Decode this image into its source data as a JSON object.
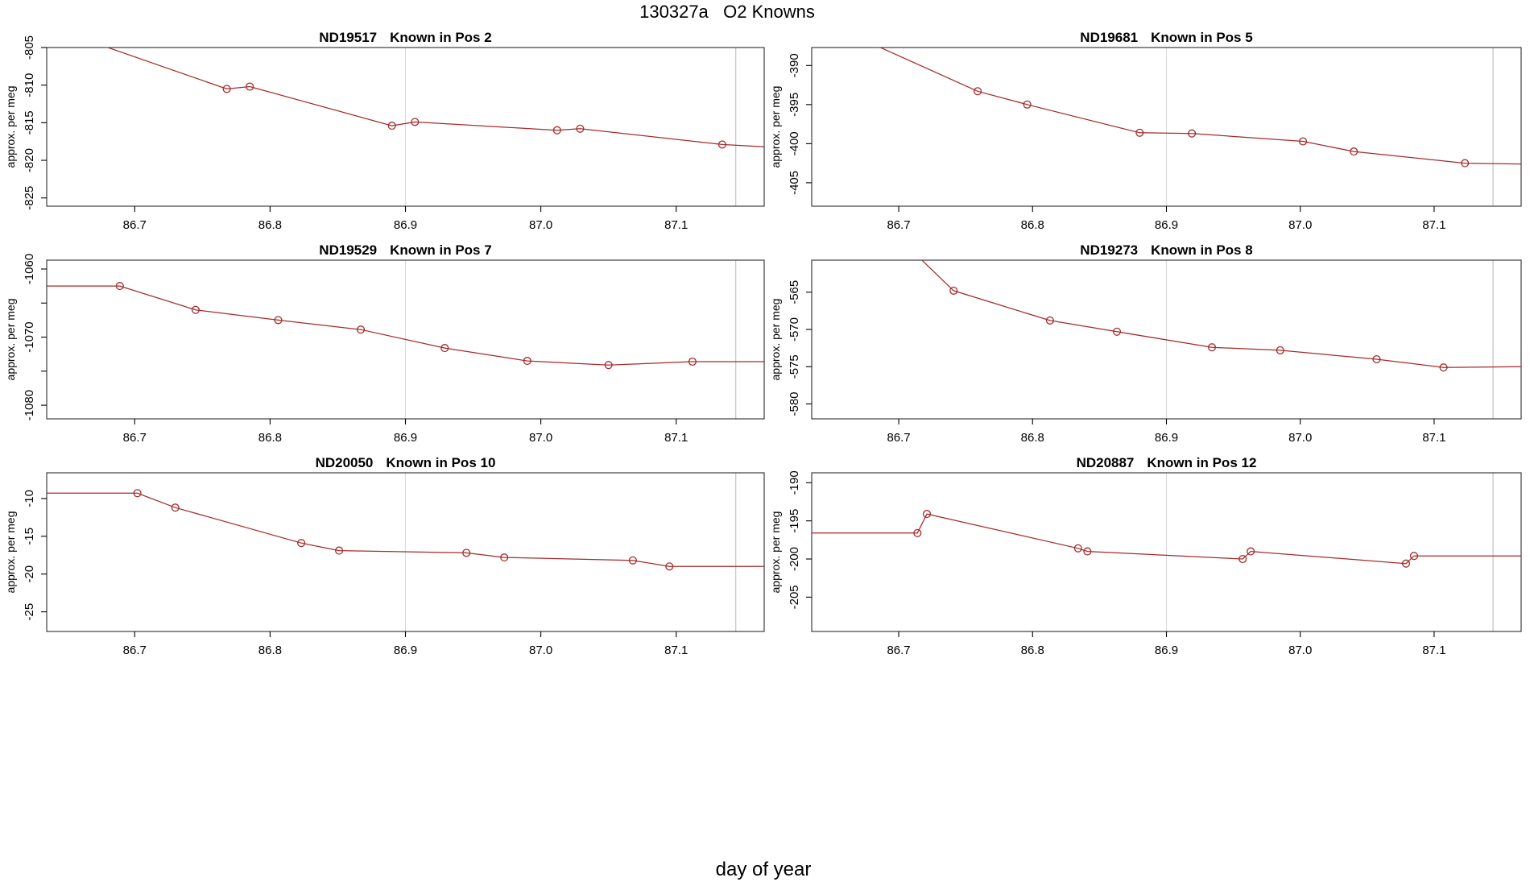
{
  "chart_data": {
    "type": "line",
    "figure_title": "130327a   O2 Knowns",
    "xlabel": "day of year",
    "ylabel": "approx. per meg",
    "line_color": "#A52A2A",
    "vline_color_mid": "#dcdcdc",
    "vline_color_right": "#c2c2c2",
    "box_color": "#2b2b2b",
    "xlim": [
      86.635,
      87.165
    ],
    "x_ticks": [
      {
        "v": 86.7,
        "label": "86.7"
      },
      {
        "v": 86.8,
        "label": "86.8"
      },
      {
        "v": 86.9,
        "label": "86.9"
      },
      {
        "v": 87.0,
        "label": "87.0"
      },
      {
        "v": 87.1,
        "label": "87.1"
      }
    ],
    "vlines": [
      86.9,
      87.144
    ],
    "legend": "none",
    "grid": "off",
    "plots": [
      {
        "id": "ND19517",
        "pos_label": "Known in Pos 2",
        "col": 0,
        "row": 0,
        "ylim": [
          -826.1,
          -805.0
        ],
        "yticks": [
          {
            "v": -805,
            "label": "-805"
          },
          {
            "v": -810,
            "label": "-810"
          },
          {
            "v": -815,
            "label": "-815"
          },
          {
            "v": -820,
            "label": "-820"
          },
          {
            "v": -825,
            "label": "-825"
          }
        ],
        "line": [
          [
            86.65,
            -803.1
          ],
          [
            86.768,
            -810.5
          ],
          [
            86.785,
            -810.2
          ],
          [
            86.89,
            -815.4
          ],
          [
            86.907,
            -814.9
          ],
          [
            87.012,
            -816.0
          ],
          [
            87.029,
            -815.8
          ],
          [
            87.134,
            -817.9
          ],
          [
            87.165,
            -818.2
          ]
        ],
        "marker_indices": [
          1,
          2,
          3,
          4,
          5,
          6,
          7
        ]
      },
      {
        "id": "ND19681",
        "pos_label": "Known in Pos 5",
        "col": 1,
        "row": 0,
        "ylim": [
          -408.0,
          -387.7
        ],
        "yticks": [
          {
            "v": -390,
            "label": "-390"
          },
          {
            "v": -395,
            "label": "-395"
          },
          {
            "v": -400,
            "label": "-400"
          },
          {
            "v": -405,
            "label": "-405"
          }
        ],
        "line": [
          [
            86.65,
            -384.9
          ],
          [
            86.759,
            -393.3
          ],
          [
            86.796,
            -395.0
          ],
          [
            86.88,
            -398.6
          ],
          [
            86.919,
            -398.7
          ],
          [
            87.002,
            -399.7
          ],
          [
            87.04,
            -401.0
          ],
          [
            87.123,
            -402.5
          ],
          [
            87.165,
            -402.6
          ]
        ],
        "marker_indices": [
          1,
          2,
          3,
          4,
          5,
          6,
          7
        ]
      },
      {
        "id": "ND19529",
        "pos_label": "Known in Pos 7",
        "col": 0,
        "row": 1,
        "ylim": [
          -1082.0,
          -1058.7
        ],
        "yticks": [
          {
            "v": -1060,
            "label": "-1060"
          },
          {
            "v": -1065,
            "label": ""
          },
          {
            "v": -1070,
            "label": "-1070"
          },
          {
            "v": -1075,
            "label": ""
          },
          {
            "v": -1080,
            "label": "-1080"
          }
        ],
        "line": [
          [
            86.635,
            -1062.5
          ],
          [
            86.689,
            -1062.5
          ],
          [
            86.745,
            -1066.0
          ],
          [
            86.806,
            -1067.5
          ],
          [
            86.867,
            -1068.9
          ],
          [
            86.929,
            -1071.6
          ],
          [
            86.99,
            -1073.5
          ],
          [
            87.05,
            -1074.1
          ],
          [
            87.112,
            -1073.6
          ],
          [
            87.165,
            -1073.6
          ]
        ],
        "marker_indices": [
          1,
          2,
          3,
          4,
          5,
          6,
          7,
          8
        ]
      },
      {
        "id": "ND19273",
        "pos_label": "Known in Pos 8",
        "col": 1,
        "row": 1,
        "ylim": [
          -582.0,
          -560.7
        ],
        "yticks": [
          {
            "v": -565,
            "label": "-565"
          },
          {
            "v": -570,
            "label": "-570"
          },
          {
            "v": -575,
            "label": "-575"
          },
          {
            "v": -580,
            "label": "-580"
          }
        ],
        "line": [
          [
            86.67,
            -552.5
          ],
          [
            86.741,
            -564.8
          ],
          [
            86.813,
            -568.8
          ],
          [
            86.863,
            -570.3
          ],
          [
            86.934,
            -572.4
          ],
          [
            86.985,
            -572.8
          ],
          [
            87.057,
            -574.0
          ],
          [
            87.107,
            -575.1
          ],
          [
            87.165,
            -575.0
          ]
        ],
        "marker_indices": [
          1,
          2,
          3,
          4,
          5,
          6,
          7
        ]
      },
      {
        "id": "ND20050",
        "pos_label": "Known in Pos 10",
        "col": 0,
        "row": 2,
        "ylim": [
          -27.6,
          -6.6
        ],
        "yticks": [
          {
            "v": -10,
            "label": "-10"
          },
          {
            "v": -15,
            "label": "-15"
          },
          {
            "v": -20,
            "label": "-20"
          },
          {
            "v": -25,
            "label": "-25"
          }
        ],
        "line": [
          [
            86.635,
            -9.3
          ],
          [
            86.702,
            -9.3
          ],
          [
            86.73,
            -11.2
          ],
          [
            86.823,
            -15.9
          ],
          [
            86.851,
            -16.9
          ],
          [
            86.945,
            -17.2
          ],
          [
            86.973,
            -17.8
          ],
          [
            87.068,
            -18.2
          ],
          [
            87.095,
            -19.0
          ],
          [
            87.165,
            -19.0
          ]
        ],
        "marker_indices": [
          1,
          2,
          3,
          4,
          5,
          6,
          7,
          8
        ]
      },
      {
        "id": "ND20887",
        "pos_label": "Known in Pos 12",
        "col": 1,
        "row": 2,
        "ylim": [
          -209.5,
          -188.7
        ],
        "yticks": [
          {
            "v": -190,
            "label": "-190"
          },
          {
            "v": -195,
            "label": "-195"
          },
          {
            "v": -200,
            "label": "-200"
          },
          {
            "v": -205,
            "label": "-205"
          }
        ],
        "line": [
          [
            86.635,
            -196.6
          ],
          [
            86.714,
            -196.6
          ],
          [
            86.721,
            -194.1
          ],
          [
            86.834,
            -198.6
          ],
          [
            86.841,
            -199.0
          ],
          [
            86.957,
            -200.0
          ],
          [
            86.963,
            -199.0
          ],
          [
            87.079,
            -200.6
          ],
          [
            87.085,
            -199.6
          ],
          [
            87.165,
            -199.6
          ]
        ],
        "marker_indices": [
          1,
          2,
          3,
          4,
          5,
          6,
          7,
          8
        ]
      }
    ]
  }
}
